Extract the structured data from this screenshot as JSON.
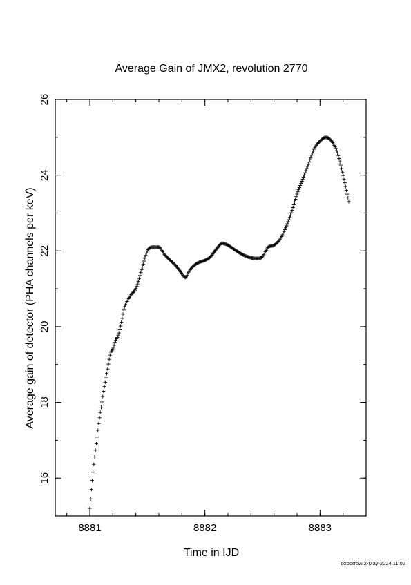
{
  "chart_data": {
    "type": "scatter",
    "marker": "plus",
    "title": "Average Gain of JMX2, revolution 2770",
    "xlabel": "Time in IJD",
    "ylabel": "Average gain of detector (PHA channels per keV)",
    "xlim": [
      8880.7,
      8883.4
    ],
    "ylim": [
      15,
      26
    ],
    "xticks": [
      8881,
      8882,
      8883
    ],
    "yticks": [
      16,
      18,
      20,
      22,
      24,
      26
    ],
    "x_minor_step": 0.2,
    "y_minor_step": 1,
    "grid": false,
    "legend": "none",
    "series": [
      {
        "x": [
          8881.0,
          8881.02,
          8881.04,
          8881.06,
          8881.08,
          8881.1,
          8881.12,
          8881.15,
          8881.18,
          8881.2,
          8881.22,
          8881.25,
          8881.28,
          8881.3,
          8881.33,
          8881.36,
          8881.4,
          8881.45,
          8881.5,
          8881.55,
          8881.6,
          8881.65,
          8881.7,
          8881.75,
          8881.8,
          8881.83,
          8881.86,
          8881.9,
          8881.95,
          8882.0,
          8882.05,
          8882.1,
          8882.15,
          8882.2,
          8882.25,
          8882.3,
          8882.35,
          8882.4,
          8882.45,
          8882.5,
          8882.55,
          8882.6,
          8882.65,
          8882.7,
          8882.75,
          8882.8,
          8882.85,
          8882.9,
          8882.95,
          8883.0,
          8883.05,
          8883.1,
          8883.15,
          8883.2,
          8883.25
        ],
        "y": [
          15.2,
          15.9,
          16.5,
          17.0,
          17.5,
          17.9,
          18.3,
          18.8,
          19.3,
          19.4,
          19.6,
          19.8,
          20.2,
          20.5,
          20.7,
          20.85,
          21.0,
          21.5,
          22.0,
          22.1,
          22.1,
          21.9,
          21.75,
          21.6,
          21.4,
          21.3,
          21.45,
          21.6,
          21.7,
          21.75,
          21.85,
          22.05,
          22.2,
          22.15,
          22.05,
          21.95,
          21.87,
          21.82,
          21.8,
          21.85,
          22.1,
          22.15,
          22.3,
          22.6,
          23.0,
          23.5,
          23.9,
          24.3,
          24.7,
          24.9,
          25.0,
          24.9,
          24.6,
          24.0,
          23.3
        ]
      }
    ]
  },
  "footer": {
    "stamp": "oxborrow  2-May-2024 11:02"
  }
}
